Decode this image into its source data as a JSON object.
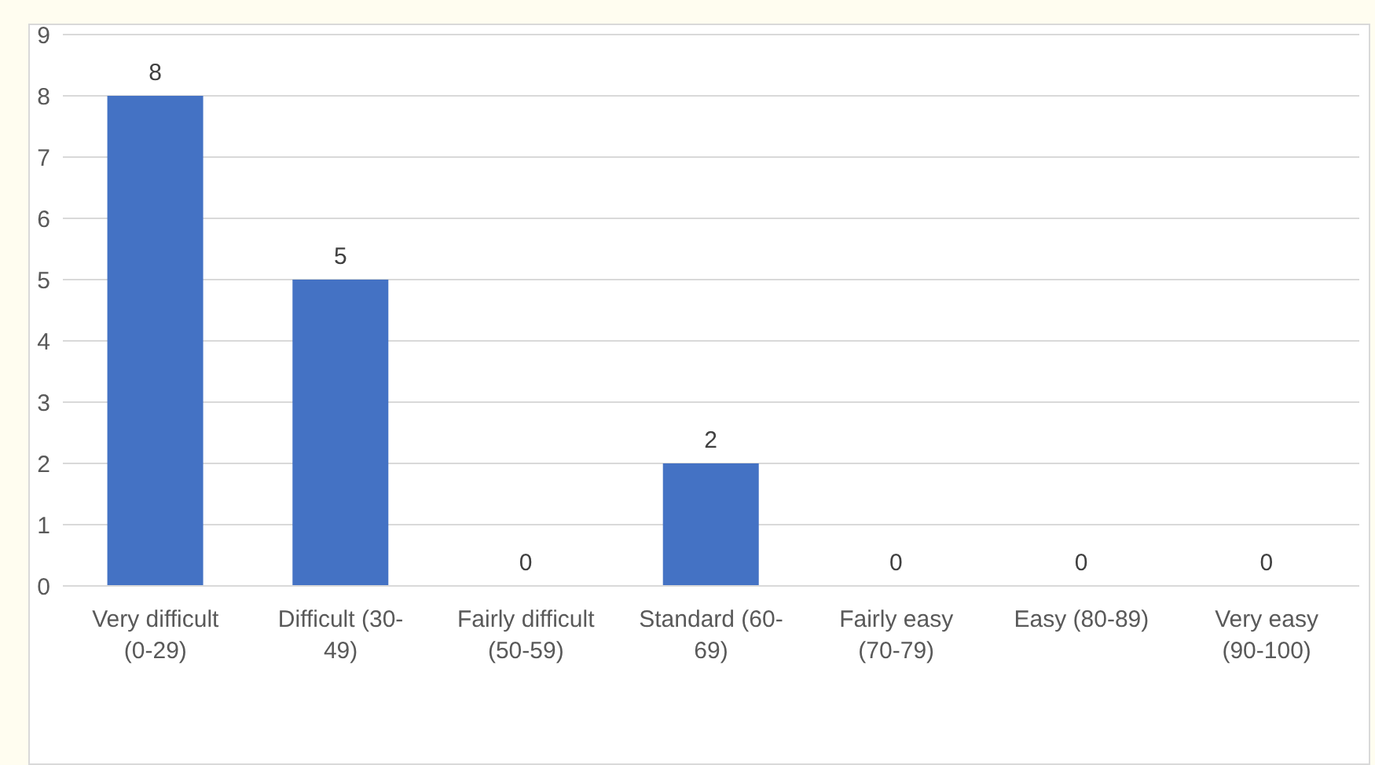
{
  "chart_data": {
    "type": "bar",
    "categories": [
      "Very difficult (0-29)",
      "Difficult (30-49)",
      "Fairly difficult (50-59)",
      "Standard (60-69)",
      "Fairly easy (70-79)",
      "Easy (80-89)",
      "Very easy (90-100)"
    ],
    "values": [
      8,
      5,
      0,
      2,
      0,
      0,
      0
    ],
    "color": "#4472c4",
    "ylim": [
      0,
      9
    ],
    "yticks": [
      0,
      1,
      2,
      3,
      4,
      5,
      6,
      7,
      8,
      9
    ],
    "grid": "y",
    "data_labels": true
  }
}
